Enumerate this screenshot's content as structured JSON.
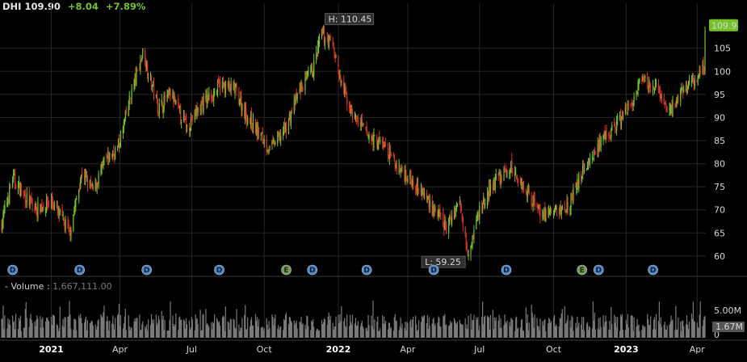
{
  "header": {
    "symbol": "DHI",
    "last": "109.90",
    "change": "+8.04",
    "change_pct": "+7.89%"
  },
  "volume_panel": {
    "label": "Volume",
    "separator": ":",
    "value": "1,667,111.00",
    "axis_top_label": "5.00M",
    "last_label": "1.67M",
    "max_volume_m": 8.0
  },
  "colors": {
    "up": "#74c22a",
    "down": "#d8322b",
    "volume": "#7a7a7a",
    "grid": "#262626",
    "last_badge": "#74c22a",
    "event_dividend": "#4f86c6",
    "event_earnings": "#7a9a5a"
  },
  "chart_data": {
    "type": "candlestick",
    "title": "",
    "ylim": [
      57,
      113
    ],
    "y_ticks": [
      60,
      65,
      70,
      75,
      80,
      85,
      90,
      95,
      100,
      105
    ],
    "volume_ticks": [
      "0"
    ],
    "x_tick_labels": [
      {
        "label": "2021",
        "date": "2021-01-04",
        "bold": true
      },
      {
        "label": "Apr",
        "date": "2021-04-01",
        "bold": false
      },
      {
        "label": "Jul",
        "date": "2021-07-01",
        "bold": false
      },
      {
        "label": "Oct",
        "date": "2021-10-01",
        "bold": false
      },
      {
        "label": "2022",
        "date": "2022-01-03",
        "bold": true
      },
      {
        "label": "Apr",
        "date": "2022-04-01",
        "bold": false
      },
      {
        "label": "Jul",
        "date": "2022-07-01",
        "bold": false
      },
      {
        "label": "Oct",
        "date": "2022-10-03",
        "bold": false
      },
      {
        "label": "2023",
        "date": "2023-01-03",
        "bold": true
      },
      {
        "label": "Apr",
        "date": "2023-04-03",
        "bold": false
      }
    ],
    "x_range": [
      "2020-11-02",
      "2023-04-14"
    ],
    "high_annotation": {
      "label": "H: 110.45",
      "date": "2021-12-13",
      "value": 110.45
    },
    "low_annotation": {
      "label": "L: 59.25",
      "date": "2022-06-17",
      "value": 59.25
    },
    "last_price": {
      "label": "109.9",
      "value": 109.9
    },
    "events": [
      {
        "type": "D",
        "date": "2020-11-16"
      },
      {
        "type": "D",
        "date": "2021-02-09"
      },
      {
        "type": "D",
        "date": "2021-05-05"
      },
      {
        "type": "D",
        "date": "2021-08-05"
      },
      {
        "type": "E",
        "date": "2021-10-29"
      },
      {
        "type": "D",
        "date": "2021-12-01"
      },
      {
        "type": "D",
        "date": "2022-02-08"
      },
      {
        "type": "D",
        "date": "2022-05-04"
      },
      {
        "type": "D",
        "date": "2022-08-04"
      },
      {
        "type": "E",
        "date": "2022-11-08"
      },
      {
        "type": "D",
        "date": "2022-11-29"
      },
      {
        "type": "D",
        "date": "2023-02-06"
      }
    ],
    "price_path": [
      [
        "2020-11-02",
        67
      ],
      [
        "2020-11-16",
        77
      ],
      [
        "2020-12-01",
        73
      ],
      [
        "2020-12-15",
        70
      ],
      [
        "2021-01-04",
        72
      ],
      [
        "2021-01-27",
        65
      ],
      [
        "2021-02-12",
        78
      ],
      [
        "2021-02-26",
        74
      ],
      [
        "2021-03-12",
        80
      ],
      [
        "2021-03-31",
        84
      ],
      [
        "2021-04-15",
        95
      ],
      [
        "2021-04-30",
        104
      ],
      [
        "2021-05-07",
        100
      ],
      [
        "2021-05-20",
        92
      ],
      [
        "2021-06-04",
        95
      ],
      [
        "2021-06-25",
        88
      ],
      [
        "2021-07-15",
        93
      ],
      [
        "2021-08-06",
        97
      ],
      [
        "2021-08-25",
        96
      ],
      [
        "2021-09-10",
        90
      ],
      [
        "2021-10-01",
        85
      ],
      [
        "2021-10-08",
        83
      ],
      [
        "2021-10-29",
        88
      ],
      [
        "2021-11-15",
        96
      ],
      [
        "2021-12-01",
        100
      ],
      [
        "2021-12-13",
        108
      ],
      [
        "2021-12-27",
        106
      ],
      [
        "2022-01-05",
        98
      ],
      [
        "2022-01-20",
        91
      ],
      [
        "2022-02-10",
        86
      ],
      [
        "2022-03-01",
        84
      ],
      [
        "2022-03-20",
        79
      ],
      [
        "2022-04-10",
        76
      ],
      [
        "2022-05-01",
        71
      ],
      [
        "2022-05-20",
        66
      ],
      [
        "2022-06-05",
        72
      ],
      [
        "2022-06-17",
        61
      ],
      [
        "2022-07-01",
        70
      ],
      [
        "2022-07-20",
        76
      ],
      [
        "2022-08-10",
        79
      ],
      [
        "2022-08-30",
        74
      ],
      [
        "2022-09-20",
        69
      ],
      [
        "2022-10-12",
        70
      ],
      [
        "2022-10-25",
        72
      ],
      [
        "2022-11-10",
        79
      ],
      [
        "2022-11-30",
        84
      ],
      [
        "2022-12-20",
        88
      ],
      [
        "2023-01-10",
        93
      ],
      [
        "2023-01-25",
        98
      ],
      [
        "2023-02-10",
        96
      ],
      [
        "2023-02-28",
        91
      ],
      [
        "2023-03-15",
        96
      ],
      [
        "2023-03-30",
        98
      ],
      [
        "2023-04-12",
        101
      ],
      [
        "2023-04-13",
        109.9
      ]
    ]
  }
}
